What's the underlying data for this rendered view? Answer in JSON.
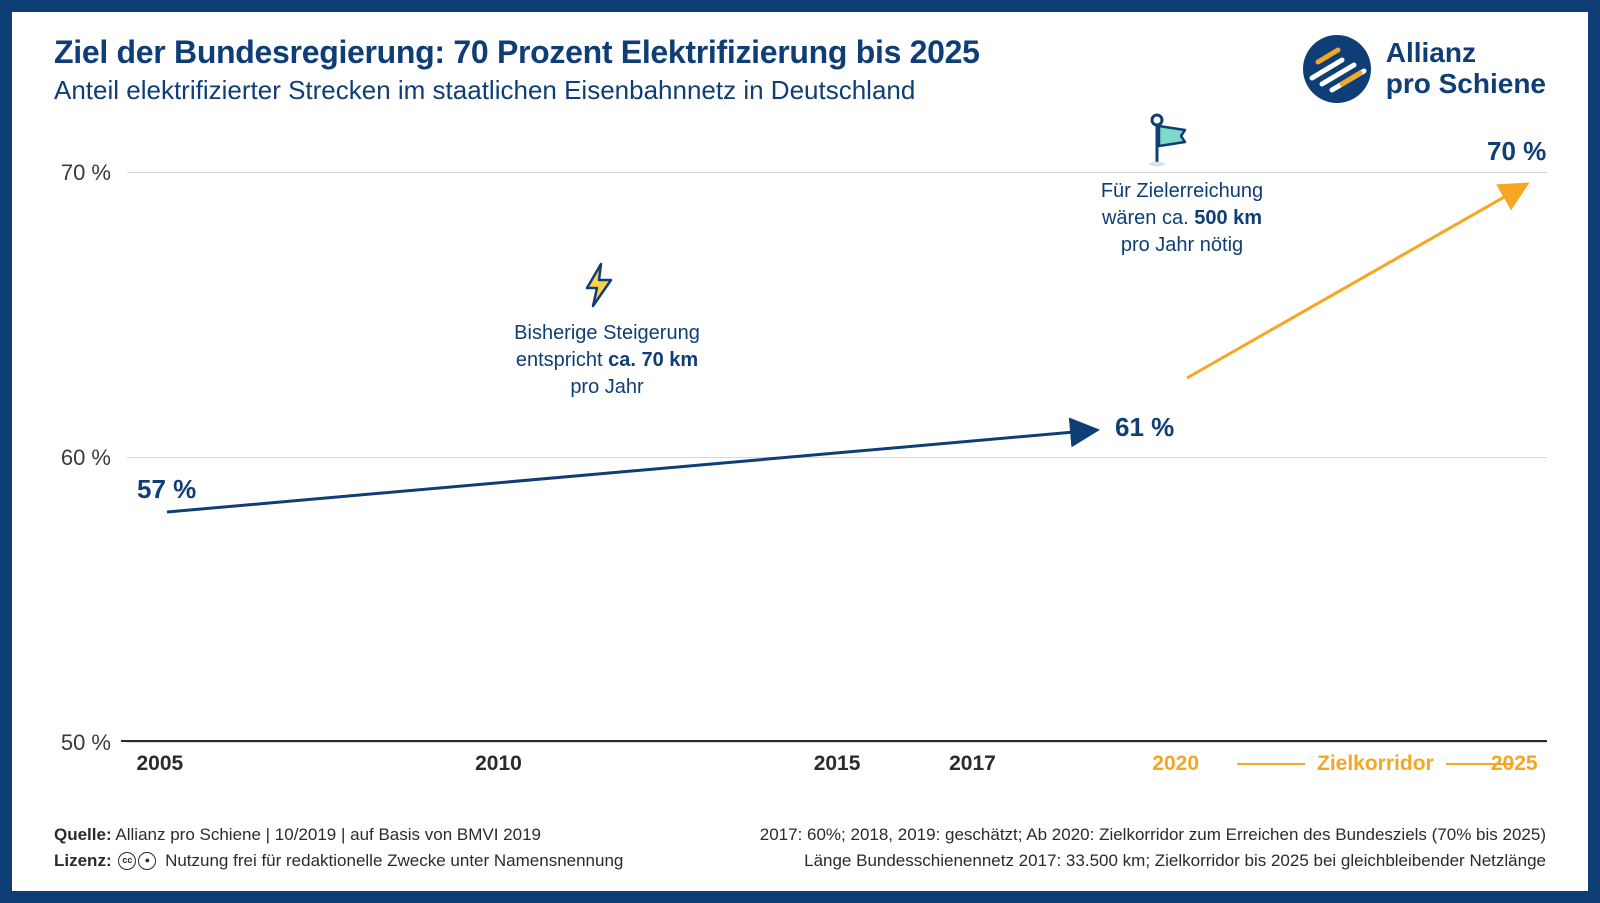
{
  "header": {
    "title": "Ziel der Bundesregierung: 70 Prozent Elektrifizierung bis 2025",
    "subtitle": "Anteil elektrifizierter Strecken im staatlichen Eisenbahnnetz in Deutschland",
    "logo_line1": "Allianz",
    "logo_line2": "pro Schiene"
  },
  "chart": {
    "type": "bar",
    "ylim": [
      50,
      70
    ],
    "yticks": [
      50,
      60,
      70
    ],
    "ytick_labels": [
      "50 %",
      "60 %",
      "70 %"
    ],
    "background_color": "#ffffff",
    "grid_color": "#d8d8d8",
    "axis_color": "#2b2b2b",
    "colors": {
      "solid": "#0f3e77",
      "striped_bg": "#ffffff",
      "orange": "#f5a623",
      "text_dark": "#2b2b2b"
    },
    "series": [
      {
        "year": 2005,
        "value": 57.0,
        "style": "solid",
        "xlabel": "2005"
      },
      {
        "year": 2006,
        "value": 57.3,
        "style": "solid"
      },
      {
        "year": 2007,
        "value": 57.4,
        "style": "solid"
      },
      {
        "year": 2008,
        "value": 57.8,
        "style": "solid"
      },
      {
        "year": 2009,
        "value": 58.2,
        "style": "solid"
      },
      {
        "year": 2010,
        "value": 58.6,
        "style": "solid",
        "xlabel": "2010"
      },
      {
        "year": 2011,
        "value": 58.7,
        "style": "solid"
      },
      {
        "year": 2012,
        "value": 58.8,
        "style": "solid"
      },
      {
        "year": 2013,
        "value": 59.2,
        "style": "solid"
      },
      {
        "year": 2014,
        "value": 59.5,
        "style": "solid"
      },
      {
        "year": 2015,
        "value": 59.7,
        "style": "solid",
        "xlabel": "2015"
      },
      {
        "year": 2016,
        "value": 59.8,
        "style": "solid"
      },
      {
        "year": 2017,
        "value": 60.0,
        "style": "solid",
        "xlabel": "2017"
      },
      {
        "year": 2018,
        "value": 60.2,
        "style": "striped"
      },
      {
        "year": 2019,
        "value": 60.5,
        "style": "striped"
      },
      {
        "year": 2020,
        "value": 62.3,
        "style": "orange",
        "xlabel": "2020",
        "xlabel_color": "orange"
      },
      {
        "year": 2021,
        "value": 63.9,
        "style": "orange"
      },
      {
        "year": 2022,
        "value": 65.3,
        "style": "orange"
      },
      {
        "year": 2023,
        "value": 66.8,
        "style": "orange"
      },
      {
        "year": 2024,
        "value": 68.4,
        "style": "orange"
      },
      {
        "year": 2025,
        "value": 70.0,
        "style": "orange",
        "xlabel": "2025",
        "xlabel_color": "orange"
      }
    ],
    "zielkorridor_label": "Zielkorridor",
    "pct_labels": {
      "start": "57 %",
      "mid": "61 %",
      "end": "70 %"
    },
    "annotations": {
      "left": {
        "line1": "Bisherige Steigerung",
        "line2_pre": "entspricht ",
        "line2_bold": "ca. 70 km",
        "line3": "pro Jahr"
      },
      "right": {
        "line1": "Für Zielerreichung",
        "line2_pre": "wären ca. ",
        "line2_bold": "500 km",
        "line3": "pro Jahr nötig"
      }
    },
    "arrows": {
      "blue": {
        "color": "#0f3e77",
        "width": 3
      },
      "orange": {
        "color": "#f5a623",
        "width": 3
      }
    }
  },
  "footer": {
    "left_line1_label": "Quelle:",
    "left_line1_text": " Allianz pro Schiene | 10/2019 | auf Basis von BMVI 2019",
    "left_line2_label": "Lizenz:",
    "left_line2_text": " Nutzung frei für redaktionelle Zwecke unter Namensnennung",
    "right_line1": "2017: 60%; 2018, 2019: geschätzt; Ab 2020: Zielkorridor zum Erreichen des Bundesziels (70% bis 2025)",
    "right_line2": "Länge Bundesschienennetz 2017: 33.500 km; Zielkorridor bis 2025 bei gleichbleibender Netzlänge"
  }
}
